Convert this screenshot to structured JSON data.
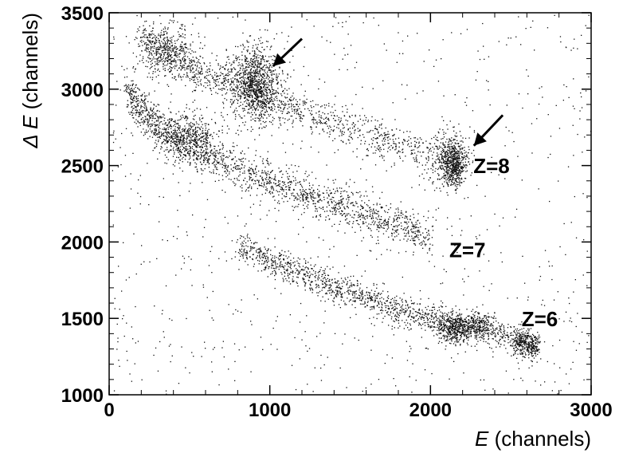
{
  "chart_data": {
    "type": "scatter",
    "title": "",
    "xlabel_symbol": "E",
    "xlabel_unit": " (channels)",
    "ylabel_symbol": "Δ E",
    "ylabel_unit": " (channels)",
    "xlim": [
      0,
      3000
    ],
    "ylim": [
      1000,
      3500
    ],
    "xticks": [
      0,
      1000,
      2000,
      3000
    ],
    "yticks": [
      1000,
      1500,
      2000,
      2500,
      3000,
      3500
    ],
    "grid": false,
    "point_color": "#111111",
    "annotations": [
      {
        "text": "Z=8",
        "x": 2380,
        "y": 2450
      },
      {
        "text": "Z=7",
        "x": 2230,
        "y": 1900
      },
      {
        "text": "Z=6",
        "x": 2680,
        "y": 1450
      }
    ],
    "arrows": [
      {
        "from": [
          1200,
          3330
        ],
        "to": [
          1020,
          3150
        ]
      },
      {
        "from": [
          2450,
          2830
        ],
        "to": [
          2270,
          2630
        ]
      }
    ],
    "series": [
      {
        "values": [
          [
            100,
            3000
          ],
          [
            200,
            2870
          ],
          [
            300,
            2760
          ],
          [
            400,
            2680
          ],
          [
            600,
            2580
          ],
          [
            800,
            2480
          ],
          [
            1000,
            2400
          ],
          [
            1200,
            2330
          ],
          [
            1400,
            2250
          ],
          [
            1600,
            2180
          ],
          [
            1800,
            2110
          ],
          [
            2000,
            2040
          ]
        ]
      },
      {
        "values": [
          [
            800,
            1980
          ],
          [
            1000,
            1880
          ],
          [
            1200,
            1790
          ],
          [
            1400,
            1700
          ],
          [
            1600,
            1630
          ],
          [
            1800,
            1560
          ],
          [
            2000,
            1500
          ],
          [
            2150,
            1440
          ],
          [
            2300,
            1450
          ],
          [
            2550,
            1350
          ],
          [
            2640,
            1330
          ]
        ]
      },
      {
        "values": [
          [
            200,
            3360
          ],
          [
            400,
            3220
          ],
          [
            600,
            3080
          ],
          [
            880,
            3020
          ],
          [
            960,
            2940
          ],
          [
            1200,
            2860
          ],
          [
            1500,
            2740
          ],
          [
            1800,
            2640
          ],
          [
            2130,
            2520
          ],
          [
            2180,
            2460
          ]
        ]
      }
    ]
  }
}
